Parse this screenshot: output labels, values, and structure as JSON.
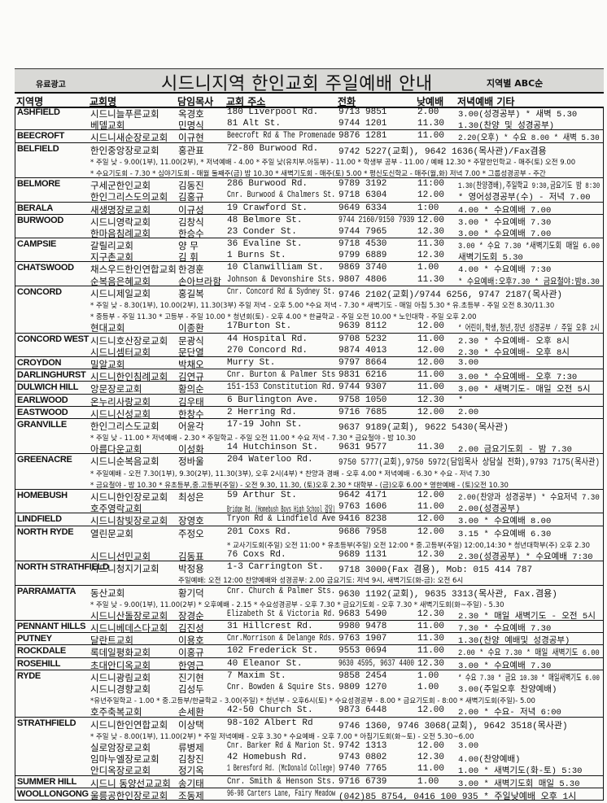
{
  "header": {
    "ad_label": "유료광고",
    "title": "시드니지역 한인교회 주일예배 안내",
    "order_label": "지역별 ABC순"
  },
  "columns": {
    "region": "지역명",
    "church": "교회명",
    "pastor": "담임목사",
    "address": "교회 주소",
    "phone": "전화",
    "day": "낮예배",
    "evening": "저녁예배  기타"
  },
  "groups": [
    {
      "region": "ASHFIELD",
      "lines": [
        {
          "name": "시드니늘푸른교회",
          "pastor": "옥경호",
          "address": "180 Liverpool Rd.",
          "phone": "9713 9851",
          "day": "2.00",
          "evening": "3.00(성경공부) * 새벽 5.30"
        },
        {
          "name": "베델교회",
          "pastor": "민명식",
          "address": "81 Alt St.",
          "phone": "9744 1201",
          "day": "11.30",
          "evening": "1.30(찬양 및 성경공부)"
        }
      ]
    },
    {
      "region": "BEECROFT",
      "lines": [
        {
          "name": "시드니새순장로교회",
          "pastor": "이규현",
          "address": "Beecroft Rd & The Promenade",
          "phone": "9876 1281",
          "day": "11.00",
          "evening": "2.20(오후) * 수요 8.00 * 새벽 5.30"
        }
      ]
    },
    {
      "region": "BELFIELD",
      "lines": [
        {
          "name": "한인중앙장로교회",
          "pastor": "홍관표",
          "address": "72-80 Burwood Rd.",
          "phone": "9742 5227(교회), 9642 1636(목사관)/Fax겸용"
        },
        {
          "note": "* 주일 낮 - 9.00(1부), 11.00(2부), * 저녁예배 - 4.00 * 주일 낮(유치부.아동부) - 11.00 * 학생부 공부 - 11.00 / 예배 12.30 * 주말한인학교 - 매주(토) 오전 9.00",
          "from": "name"
        },
        {
          "note": "* 수요기도회 - 7.30 * 심야기도회 - 매월 둘째주(금) 밤 10.30 * 새벽기도회 - 매주(토) 5.00 * 평신도신학교 - 매주(월,화) 저녁 7.00 * 그룹성경공부 - 주간",
          "from": "name"
        }
      ]
    },
    {
      "region": "BELMORE",
      "lines": [
        {
          "name": "구세군한인교회",
          "pastor": "김동진",
          "address": "286 Burwood Rd.",
          "phone": "9789 3192",
          "day": "11:00",
          "evening": "1.30(찬양경배),주일학교 9:30,금요기도 밤 8:30"
        },
        {
          "name": "한인그리스도의교회",
          "pastor": "김홍규",
          "address": "Cnr. Burwood & Chalmers St.",
          "phone": "9718 6304",
          "day": "12.00",
          "evening": "* 영어성경공부(수) - 저녁 7.00"
        }
      ]
    },
    {
      "region": "BERALA",
      "lines": [
        {
          "name": "새생명장로교회",
          "pastor": "이규성",
          "address": "19 Crawford St.",
          "phone": "9649 6334",
          "day": "1:00",
          "evening": "4.00 * 수요예배 7.00"
        }
      ]
    },
    {
      "region": "BURWOOD",
      "lines": [
        {
          "name": "시드니영락교회",
          "pastor": "김창식",
          "address": "48 Belmore St.",
          "phone": "9744 2160/9150 7939",
          "day": "12.00",
          "evening": "3.00 * 수요예배 7.30"
        },
        {
          "name": "한마음침례교회",
          "pastor": "한승수",
          "address": "23 Conder St.",
          "phone": "9744 7965",
          "day": "12.30",
          "evening": "3.00 * 수요예배 7.00"
        }
      ]
    },
    {
      "region": "CAMPSIE",
      "lines": [
        {
          "name": "갈릴리교회",
          "pastor": "양 무",
          "address": "36 Evaline St.",
          "phone": "9718 4530",
          "day": "11.30",
          "evening": "3.00 * 수요 7.30 *새벽기도회 매일 6.00"
        },
        {
          "name": "지구촌교회",
          "pastor": "김 휘",
          "address": "1 Burns St.",
          "phone": "9799 6889",
          "day": "12.30",
          "evening": "새벽기도회 5.30"
        }
      ]
    },
    {
      "region": "CHATSWOOD",
      "lines": [
        {
          "name": "채스우드한인연합교회",
          "pastor": "한경훈",
          "address": "10 Clanwilliam St.",
          "phone": "9869 3740",
          "day": "1.00",
          "evening": "4.00  * 수요예배 7:30"
        },
        {
          "name": "순복음은혜교회",
          "pastor": "손아브라함",
          "address": "Johnson & Devonshire Sts.",
          "phone": "9807 4806",
          "day": "11.30",
          "evening": "* 수요예배:오후7.30 * 금요철야:밤8.30"
        }
      ]
    },
    {
      "region": "CONCORD",
      "lines": [
        {
          "name": "시드니제일교회",
          "pastor": "홍길복",
          "address": "Cnr. Concord Rd & Sydney St.",
          "phone": "9746 2102(교회)/9744 6256, 9747 2187(목사관)"
        },
        {
          "note": "* 주일 낮 - 8.30(1부), 10.00(2부), 11.30(3부) 주일 저녁 - 오후 5.00 *수요 저녁 - 7.30 * 새벽기도 - 매일 아침 5.30 * 유.초등부 - 주일 오전 8.30/11.30",
          "from": "name"
        },
        {
          "note": "* 중등부 - 주일 11.30 * 고등부 - 주일 10.00 * 청년회(토) - 오후 4.00 * 한글학교 - 주일 오전 10.00 * 노인대학 - 주일 오후 2.00",
          "from": "name"
        },
        {
          "name": "현대교회",
          "pastor": "이종환",
          "address": "17Burton St.",
          "phone": "9639 8112",
          "day": "12.00",
          "evening": "* 어린이,학생,청년,장년 성경공부 / 주일 오후 2시"
        }
      ]
    },
    {
      "region": "CONCORD WEST",
      "lines": [
        {
          "name": "시드니호산장로교회",
          "pastor": "문광식",
          "address": "44 Hospital Rd.",
          "phone": "9708 5232",
          "day": "11.00",
          "evening": "2.30  * 수요예배- 오후 8시"
        },
        {
          "name": "시드니셈터교회",
          "pastor": "문단열",
          "address": "270 Concord Rd.",
          "phone": "9874 4013",
          "day": "12.00",
          "evening": "2.30  * 수요예배- 오후 8시"
        }
      ]
    },
    {
      "region": "CROYDON",
      "lines": [
        {
          "name": "밀알교회",
          "pastor": "박채오",
          "address": "Murry St.",
          "phone": "9797 8664",
          "day": "12.00",
          "evening": "3.00"
        }
      ]
    },
    {
      "region": "DARLINGHURST",
      "lines": [
        {
          "name": "시드니한인침례교회",
          "pastor": "김연규",
          "address": "Cnr. Burton & Palmer Sts",
          "phone": "9831 6216",
          "day": "11.00",
          "evening": "3.00 * 수요예배- 오후 7:30"
        }
      ]
    },
    {
      "region": "DULWICH HILL",
      "lines": [
        {
          "name": "앙문장로교회",
          "pastor": "황의순",
          "address": "151-153 Constitution Rd.",
          "phone": "9744 9307",
          "day": "11.00",
          "evening": "3.00 * 새벽기도- 매일 오전 5시"
        }
      ]
    },
    {
      "region": "EARLWOOD",
      "lines": [
        {
          "name": "온누리사랑교회",
          "pastor": "김우태",
          "address": "6 Burlington Ave.",
          "phone": "9758 1050",
          "day": "12.30",
          "evening": "*"
        }
      ]
    },
    {
      "region": "EASTWOOD",
      "lines": [
        {
          "name": "시드니신성교회",
          "pastor": "한창수",
          "address": "2 Herring Rd.",
          "phone": "9716 7685",
          "day": "12.00",
          "evening": "2.00"
        }
      ]
    },
    {
      "region": "GRANVILLE",
      "lines": [
        {
          "name": "한인그리스도교회",
          "pastor": "어윤각",
          "address": "17-19 John St.",
          "phone": "9637 9189(교회), 9622 5430(목사관)"
        },
        {
          "note": "* 주일 낮 - 11.00 * 저녁예배 - 2.30 * 주일학교 - 주일 오전 11.00 * 수요 저녁 - 7.30 * 금요철야 - 밤 10.30",
          "from": "name"
        },
        {
          "name": "아름다운교회",
          "pastor": "이성화",
          "address": "14 Hutchinson St.",
          "phone": "9631 9577",
          "day": "11.30",
          "evening": "2.00 금요기도회 - 밤 7.30"
        }
      ]
    },
    {
      "region": "GREENACRE",
      "lines": [
        {
          "name": "시드니순복음교회",
          "pastor": "정바울",
          "address": "204 Waterloo Rd.",
          "phone": "9750 5777(교회),9750 5972(담임목사 상담실 전화),9793 7175(목사관)"
        },
        {
          "note": "* 주일예배 - 오전 7.30(1부), 9.30(2부), 11.30(3부), 오후 2시(4부) * 찬양과 경배 - 오후 4.00 * 저녁예배 - 6.30 * 수요 - 저녁 7.30",
          "from": "name"
        },
        {
          "note": "* 금요철야 - 밤 10.30 * 유초등부,중.고등부(주일) - 오전 9.30, 11.30, (토)오후 2.30 * 대학부 - (금)오후 6.00 * 영한예배 - (토)오전 10.30",
          "from": "name"
        }
      ]
    },
    {
      "region": "HOMEBUSH",
      "lines": [
        {
          "name": "시드니한인장로교회",
          "pastor": "최성은",
          "address": "59 Arthur St.",
          "phone": "9642 4171",
          "day": "12.00",
          "evening": "2.00(찬양과 성경공부) * 수요저녁 7.30"
        },
        {
          "name": "호주영락교회",
          "pastor": "",
          "address": "Bridge Rd. (Homebush Boys High School 강당)",
          "phone": "9763 1606",
          "day": "11.00",
          "evening": "2.00(성경공부)"
        }
      ]
    },
    {
      "region": "LINDFIELD",
      "lines": [
        {
          "name": "시드니참빛장로교회",
          "pastor": "장영호",
          "address": "Tryon Rd & Lindfield Ave",
          "phone": "9416 8238",
          "day": "12.00",
          "evening": "3.00  * 수요예배 8.00"
        }
      ]
    },
    {
      "region": "NORTH RYDE",
      "lines": [
        {
          "name": "열린문교회",
          "pastor": "주정오",
          "address": "201 Coxs Rd.",
          "phone": "9686 7958",
          "day": "12.00",
          "evening": "3.15  * 수요예배 6.30"
        },
        {
          "note": "* 교사기도회(주일) 오전 11:00 * 유초등부(주일) 오전 12:00 * 중.고등부(주일) 12:00,14:30 * 청년대학부(주) 오후 2.30",
          "from": "addr"
        },
        {
          "name": "시드니선민교회",
          "pastor": "김동표",
          "address": "76 Coxs Rd.",
          "phone": "9689 1131",
          "day": "12.30",
          "evening": "2.30(성경공부) * 수요예배 7:30"
        }
      ]
    },
    {
      "region": "NORTH STRATHFIELD",
      "lines": [
        {
          "name": "시드니청지기교회",
          "pastor": "박정용",
          "address": "1-3 Carrington St.",
          "phone": "9718 3000(Fax 겸용), Mob: 015 414 787"
        },
        {
          "note": "주일예배: 오전 12:00  찬양예배와 성경공부: 2.00 금요기도: 저녁 9시, 새벽기도(화-금): 오전 6시",
          "from": "pastor"
        }
      ]
    },
    {
      "region": "PARRAMATTA",
      "lines": [
        {
          "name": "동산교회",
          "pastor": "황기덕",
          "address": "Cnr. Church & Palmer Sts.",
          "phone": "9630 1192(교회), 9635 3313(목사관, Fax.겸용)"
        },
        {
          "note": "* 주일 낮 - 9.00(1부), 11.00(2부) * 오후예배 - 2.15 * 수요성경공부 - 오후 7.30 * 금요기도회 - 오후 7.30 * 새벽기도회(화~주일) - 5.30",
          "from": "name"
        },
        {
          "name": "시드니산돌장로교회",
          "pastor": "장경순",
          "address": "Elizabeth St & Victoria Rd.",
          "phone": "9683 5490",
          "day": "12.30",
          "evening": "2.30 * 매일 새벽기도 - 오전 5시"
        }
      ]
    },
    {
      "region": "PENNANT HILLS",
      "lines": [
        {
          "name": "시드니베데스다교회",
          "pastor": "김진성",
          "address": "31 Hillcrest Rd.",
          "phone": "9980 9478",
          "day": "11.00",
          "evening": "7.30 * 수요예배 7.30"
        }
      ]
    },
    {
      "region": "PUTNEY",
      "lines": [
        {
          "name": "달란트교회",
          "pastor": "이용호",
          "address": "Cnr.Morrison & Delange Rds.",
          "phone": "9763 1907",
          "day": "11.30",
          "evening": "1.30(찬양 예배및 성경공부)"
        }
      ]
    },
    {
      "region": "ROCKDALE",
      "lines": [
        {
          "name": "록데일평화교회",
          "pastor": "이홍규",
          "address": "102 Frederick St.",
          "phone": "9553 0694",
          "day": "11.00",
          "evening": "2.00 * 수요 7.30 * 매일 새벽기도 6.00"
        }
      ]
    },
    {
      "region": "ROSEHILL",
      "lines": [
        {
          "name": "초대안디옥교회",
          "pastor": "한영근",
          "address": "40 Eleanor St.",
          "phone": "9630 4595, 9637 4400",
          "day": "12.30",
          "evening": "3.00  * 수요예배 7.30"
        }
      ]
    },
    {
      "region": "RYDE",
      "lines": [
        {
          "name": "시드니광림교회",
          "pastor": "진기현",
          "address": "7 Maxim St.",
          "phone": "9858 2454",
          "day": "1.00",
          "evening": "* 수요 7.30 * 금요 10.30 * 매일새벽기도 6.00"
        },
        {
          "name": "시드니경향교회",
          "pastor": "김성두",
          "address": "Cnr. Bowden & Squire Sts.",
          "phone": "9809 1270",
          "day": "1.00",
          "evening": "3.00(주일오후 찬양예배)"
        },
        {
          "note": "*유년주일학교 - 1.00 * 중.고등부/한글학교 - 3.00(주일) * 청년부 - 오후6시(토) * 수요성경공부 - 8.00 * 금요기도회 - 8:00 * 새벽기도회(주일)- 5.00",
          "from": "name"
        },
        {
          "name": "호주축복교회",
          "pastor": "손세환",
          "address": "42-50 Church St.",
          "phone": "9873 6448",
          "day": "12.00",
          "evening": "2.00 * 수요- 저녁 6:00"
        }
      ]
    },
    {
      "region": "STRATHFIELD",
      "lines": [
        {
          "name": "시드니한인연합교회",
          "pastor": "이상택",
          "address": "98-102 Albert Rd",
          "phone": "9746 1360, 9746 3068(교회), 9642 3518(목사관)"
        },
        {
          "note": "* 주일 낮 - 8.00(1부), 11.00(2부) * 주일 저녁예배 - 오후 3.30 * 수요예배 - 오후 7.00 * 아침기도회(화~토) - 오전 5.30~6.00",
          "from": "name"
        },
        {
          "name": "실로암장로교회",
          "pastor": "류병제",
          "address": "Cnr. Barker Rd & Marion St.",
          "phone": "9742 1313",
          "day": "12.00",
          "evening": "3.00"
        },
        {
          "name": "임마누엘장로교회",
          "pastor": "김창진",
          "address": "42 Homebush Rd.",
          "phone": "9743 0802",
          "day": "12.30",
          "evening": "4.00(찬양예배)"
        },
        {
          "name": "안디옥장로교회",
          "pastor": "정기옥",
          "address": "1 Beresford Rd. (McDonald College)",
          "phone": "9740 7765",
          "day": "11.00",
          "evening": "1.00 * 새벽기도(화-토) 5:30"
        }
      ]
    },
    {
      "region": "SUMMER HILL",
      "lines": [
        {
          "name": "시드니 동양선교교회",
          "pastor": "송기태",
          "address": "Cnr. Smith & Henson Sts.",
          "phone": "9716 6739",
          "day": "1.00",
          "evening": "3.00 * 새벽기도회 매일 5.30"
        }
      ]
    },
    {
      "region": "WOOLLONGONG",
      "lines": [
        {
          "name": "울릉공한인장로교회",
          "pastor": "조동제",
          "address": "96-98 Carters Lane, Fairy Meadow",
          "phone": "(042)85 8754, 0416 100 935 * 주일낮예배 오후 1시"
        }
      ]
    }
  ]
}
